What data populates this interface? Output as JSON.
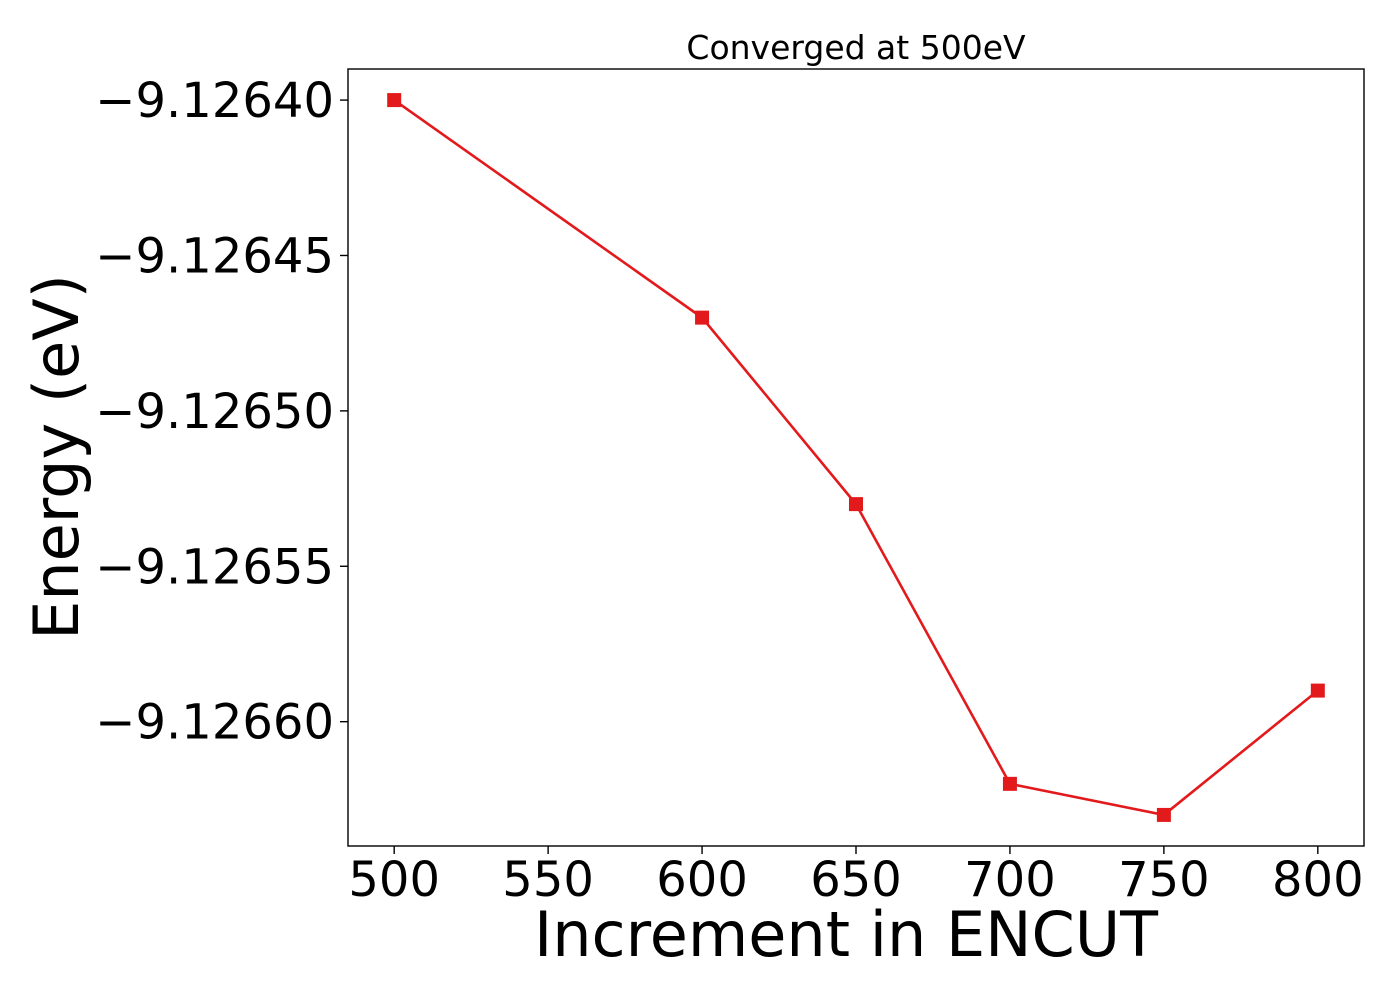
{
  "chart_data": {
    "type": "line",
    "title": "Converged at 500eV",
    "xlabel": "Increment in ENCUT",
    "ylabel": "Energy (eV)",
    "x": [
      500,
      600,
      650,
      700,
      750,
      800
    ],
    "series": [
      {
        "values": [
          -9.1264,
          -9.12647,
          -9.12653,
          -9.12662,
          -9.12663,
          -9.12659
        ],
        "color": "#e31a1c",
        "marker": "square"
      }
    ],
    "xticks": [
      500,
      550,
      600,
      650,
      700,
      750,
      800
    ],
    "xtick_labels": [
      "500",
      "550",
      "600",
      "650",
      "700",
      "750",
      "800"
    ],
    "yticks": [
      -9.1264,
      -9.12645,
      -9.1265,
      -9.12655,
      -9.1266
    ],
    "ytick_labels": [
      "−9.12640",
      "−9.12645",
      "−9.12650",
      "−9.12655",
      "−9.12660"
    ],
    "xlim": [
      485,
      815
    ],
    "ylim": [
      -9.12664,
      -9.12639
    ],
    "grid": false,
    "legend": "none"
  }
}
